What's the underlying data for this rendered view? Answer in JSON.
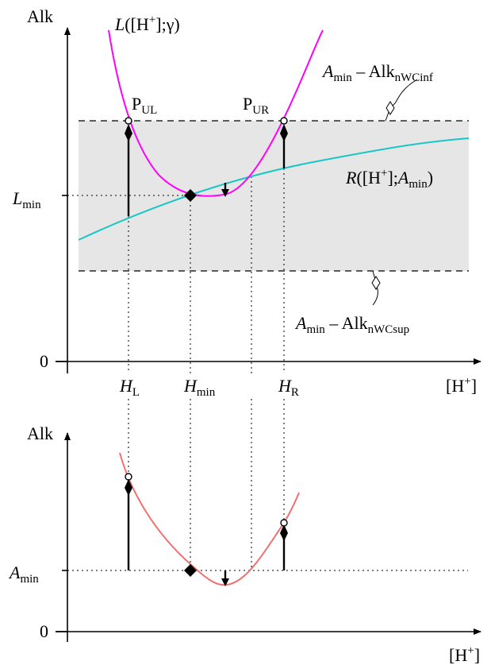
{
  "top_plot": {
    "y_axis_label": "Alk",
    "zero_label": "0",
    "x_axis_label": {
      "main": "[H",
      "sup": "+",
      "close": "]"
    },
    "curve_L_label": {
      "L": "L",
      "open": "([H",
      "sup": "+",
      "rest": "];γ)"
    },
    "curve_R_label": {
      "R": "R",
      "open": "([H",
      "sup": "+",
      "mid": "];",
      "A": "A",
      "sub": "min",
      "close": ")"
    },
    "upper_bound_label": {
      "A": "A",
      "sub": "min",
      "dash": " – Alk",
      "sub2": "nWCinf"
    },
    "lower_bound_label": {
      "A": "A",
      "sub": "min",
      "dash": " – Alk",
      "sub2": "nWCsup"
    },
    "point_left": {
      "P": "P",
      "sub": "UL"
    },
    "point_right": {
      "P": "P",
      "sub": "UR"
    },
    "l_min_label": {
      "L": "L",
      "sub": "min"
    },
    "h_left_label": {
      "H": "H",
      "sub": "L"
    },
    "h_min_label": {
      "H": "H",
      "sub": "min"
    },
    "h_right_label": {
      "H": "H",
      "sub": "R"
    },
    "colors": {
      "curve_L": "#ff00ff",
      "curve_R": "#19c6c6",
      "band": "#e6e6e6"
    }
  },
  "bottom_plot": {
    "y_axis_label": "Alk",
    "zero_label": "0",
    "x_axis_label": {
      "main": "[H",
      "sup": "+",
      "close": "]"
    },
    "a_min_label": {
      "A": "A",
      "sub": "min"
    },
    "colors": {
      "curve": "#f07070"
    }
  }
}
